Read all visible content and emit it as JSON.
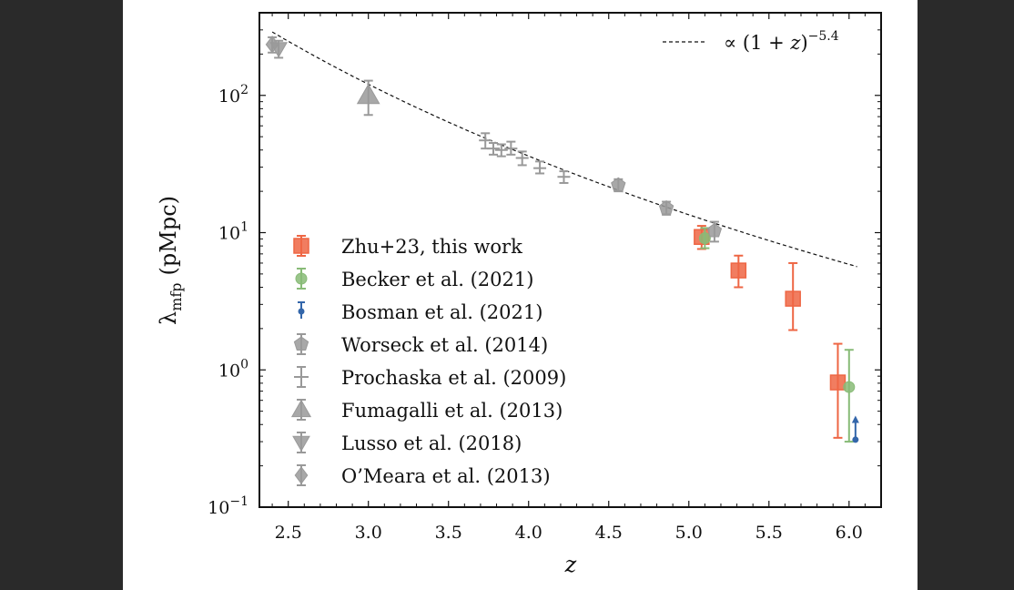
{
  "chart_data": {
    "type": "scatter",
    "xlabel": "z",
    "ylabel": "λ_mfp (pMpc)",
    "ylabel_main": "λ",
    "ylabel_sub": "mfp",
    "ylabel_unit": "(pMpc)",
    "xlim": [
      2.32,
      6.2
    ],
    "ylim": [
      0.1,
      400
    ],
    "yscale": "log",
    "x_ticks": [
      2.5,
      3.0,
      3.5,
      4.0,
      4.5,
      5.0,
      5.5,
      6.0
    ],
    "x_tick_labels": [
      "2.5",
      "3.0",
      "3.5",
      "4.0",
      "4.5",
      "5.0",
      "5.5",
      "6.0"
    ],
    "y_ticks": [
      {
        "value": 100,
        "base": "10",
        "exp": "2"
      },
      {
        "value": 10,
        "base": "10",
        "exp": "1"
      },
      {
        "value": 1,
        "base": "10",
        "exp": "0"
      },
      {
        "value": 0.1,
        "base": "10",
        "exp": "−1"
      }
    ],
    "fit_line": {
      "label_prefix": "∝ (1 + ",
      "label_var": "z",
      "label_suffix": ")",
      "label_exp": "−5.4",
      "exponent": -5.4,
      "norm": 290,
      "z0": 2.4
    },
    "series": [
      {
        "name": "Zhu+23, this work",
        "marker": "square",
        "color": "#ee6644",
        "points": [
          {
            "x": 5.08,
            "y": 9.3,
            "ylo": 7.6,
            "yhi": 11.2
          },
          {
            "x": 5.31,
            "y": 5.3,
            "ylo": 4.0,
            "yhi": 6.8
          },
          {
            "x": 5.65,
            "y": 3.3,
            "ylo": 1.95,
            "yhi": 6.0
          },
          {
            "x": 5.93,
            "y": 0.81,
            "ylo": 0.32,
            "yhi": 1.55
          }
        ]
      },
      {
        "name": "Becker et al. (2021)",
        "marker": "circle",
        "color": "#88bb77",
        "points": [
          {
            "x": 5.1,
            "y": 9.1,
            "ylo": 7.7,
            "yhi": 10.8
          },
          {
            "x": 6.0,
            "y": 0.75,
            "ylo": 0.3,
            "yhi": 1.4
          }
        ]
      },
      {
        "name": "Bosman et al. (2021)",
        "marker": "dot-arrow",
        "color": "#3366aa",
        "points": [
          {
            "x": 6.04,
            "y": 0.31,
            "yhi": 0.45
          }
        ]
      },
      {
        "name": "Worseck et al. (2014)",
        "marker": "pentagon",
        "color": "#999999",
        "points": [
          {
            "x": 4.56,
            "y": 22.2,
            "ylo": 20.0,
            "yhi": 24.5
          },
          {
            "x": 4.86,
            "y": 15.1,
            "ylo": 13.5,
            "yhi": 16.8
          },
          {
            "x": 5.16,
            "y": 10.3,
            "ylo": 8.6,
            "yhi": 12.0
          }
        ]
      },
      {
        "name": "Prochaska et al. (2009)",
        "marker": "plus",
        "color": "#999999",
        "points": [
          {
            "x": 3.73,
            "y": 47,
            "ylo": 41,
            "yhi": 53
          },
          {
            "x": 3.78,
            "y": 41,
            "ylo": 37,
            "yhi": 45
          },
          {
            "x": 3.83,
            "y": 40,
            "ylo": 36,
            "yhi": 44
          },
          {
            "x": 3.89,
            "y": 41,
            "ylo": 37,
            "yhi": 46
          },
          {
            "x": 3.96,
            "y": 35,
            "ylo": 31,
            "yhi": 39
          },
          {
            "x": 4.07,
            "y": 29.5,
            "ylo": 27,
            "yhi": 33
          },
          {
            "x": 4.22,
            "y": 25.5,
            "ylo": 23,
            "yhi": 28
          }
        ]
      },
      {
        "name": "Fumagalli et al. (2013)",
        "marker": "triangle-up",
        "color": "#999999",
        "points": [
          {
            "x": 3.0,
            "y": 100,
            "ylo": 72,
            "yhi": 128
          }
        ]
      },
      {
        "name": "Lusso et al. (2018)",
        "marker": "triangle-down",
        "color": "#999999",
        "points": [
          {
            "x": 2.44,
            "y": 219,
            "ylo": 188,
            "yhi": 250
          }
        ]
      },
      {
        "name": "O’Meara et al. (2013)",
        "marker": "diamond",
        "color": "#999999",
        "points": [
          {
            "x": 2.4,
            "y": 235,
            "ylo": 205,
            "yhi": 265
          }
        ]
      }
    ],
    "legend_placement": "lower-left",
    "grid": false
  }
}
